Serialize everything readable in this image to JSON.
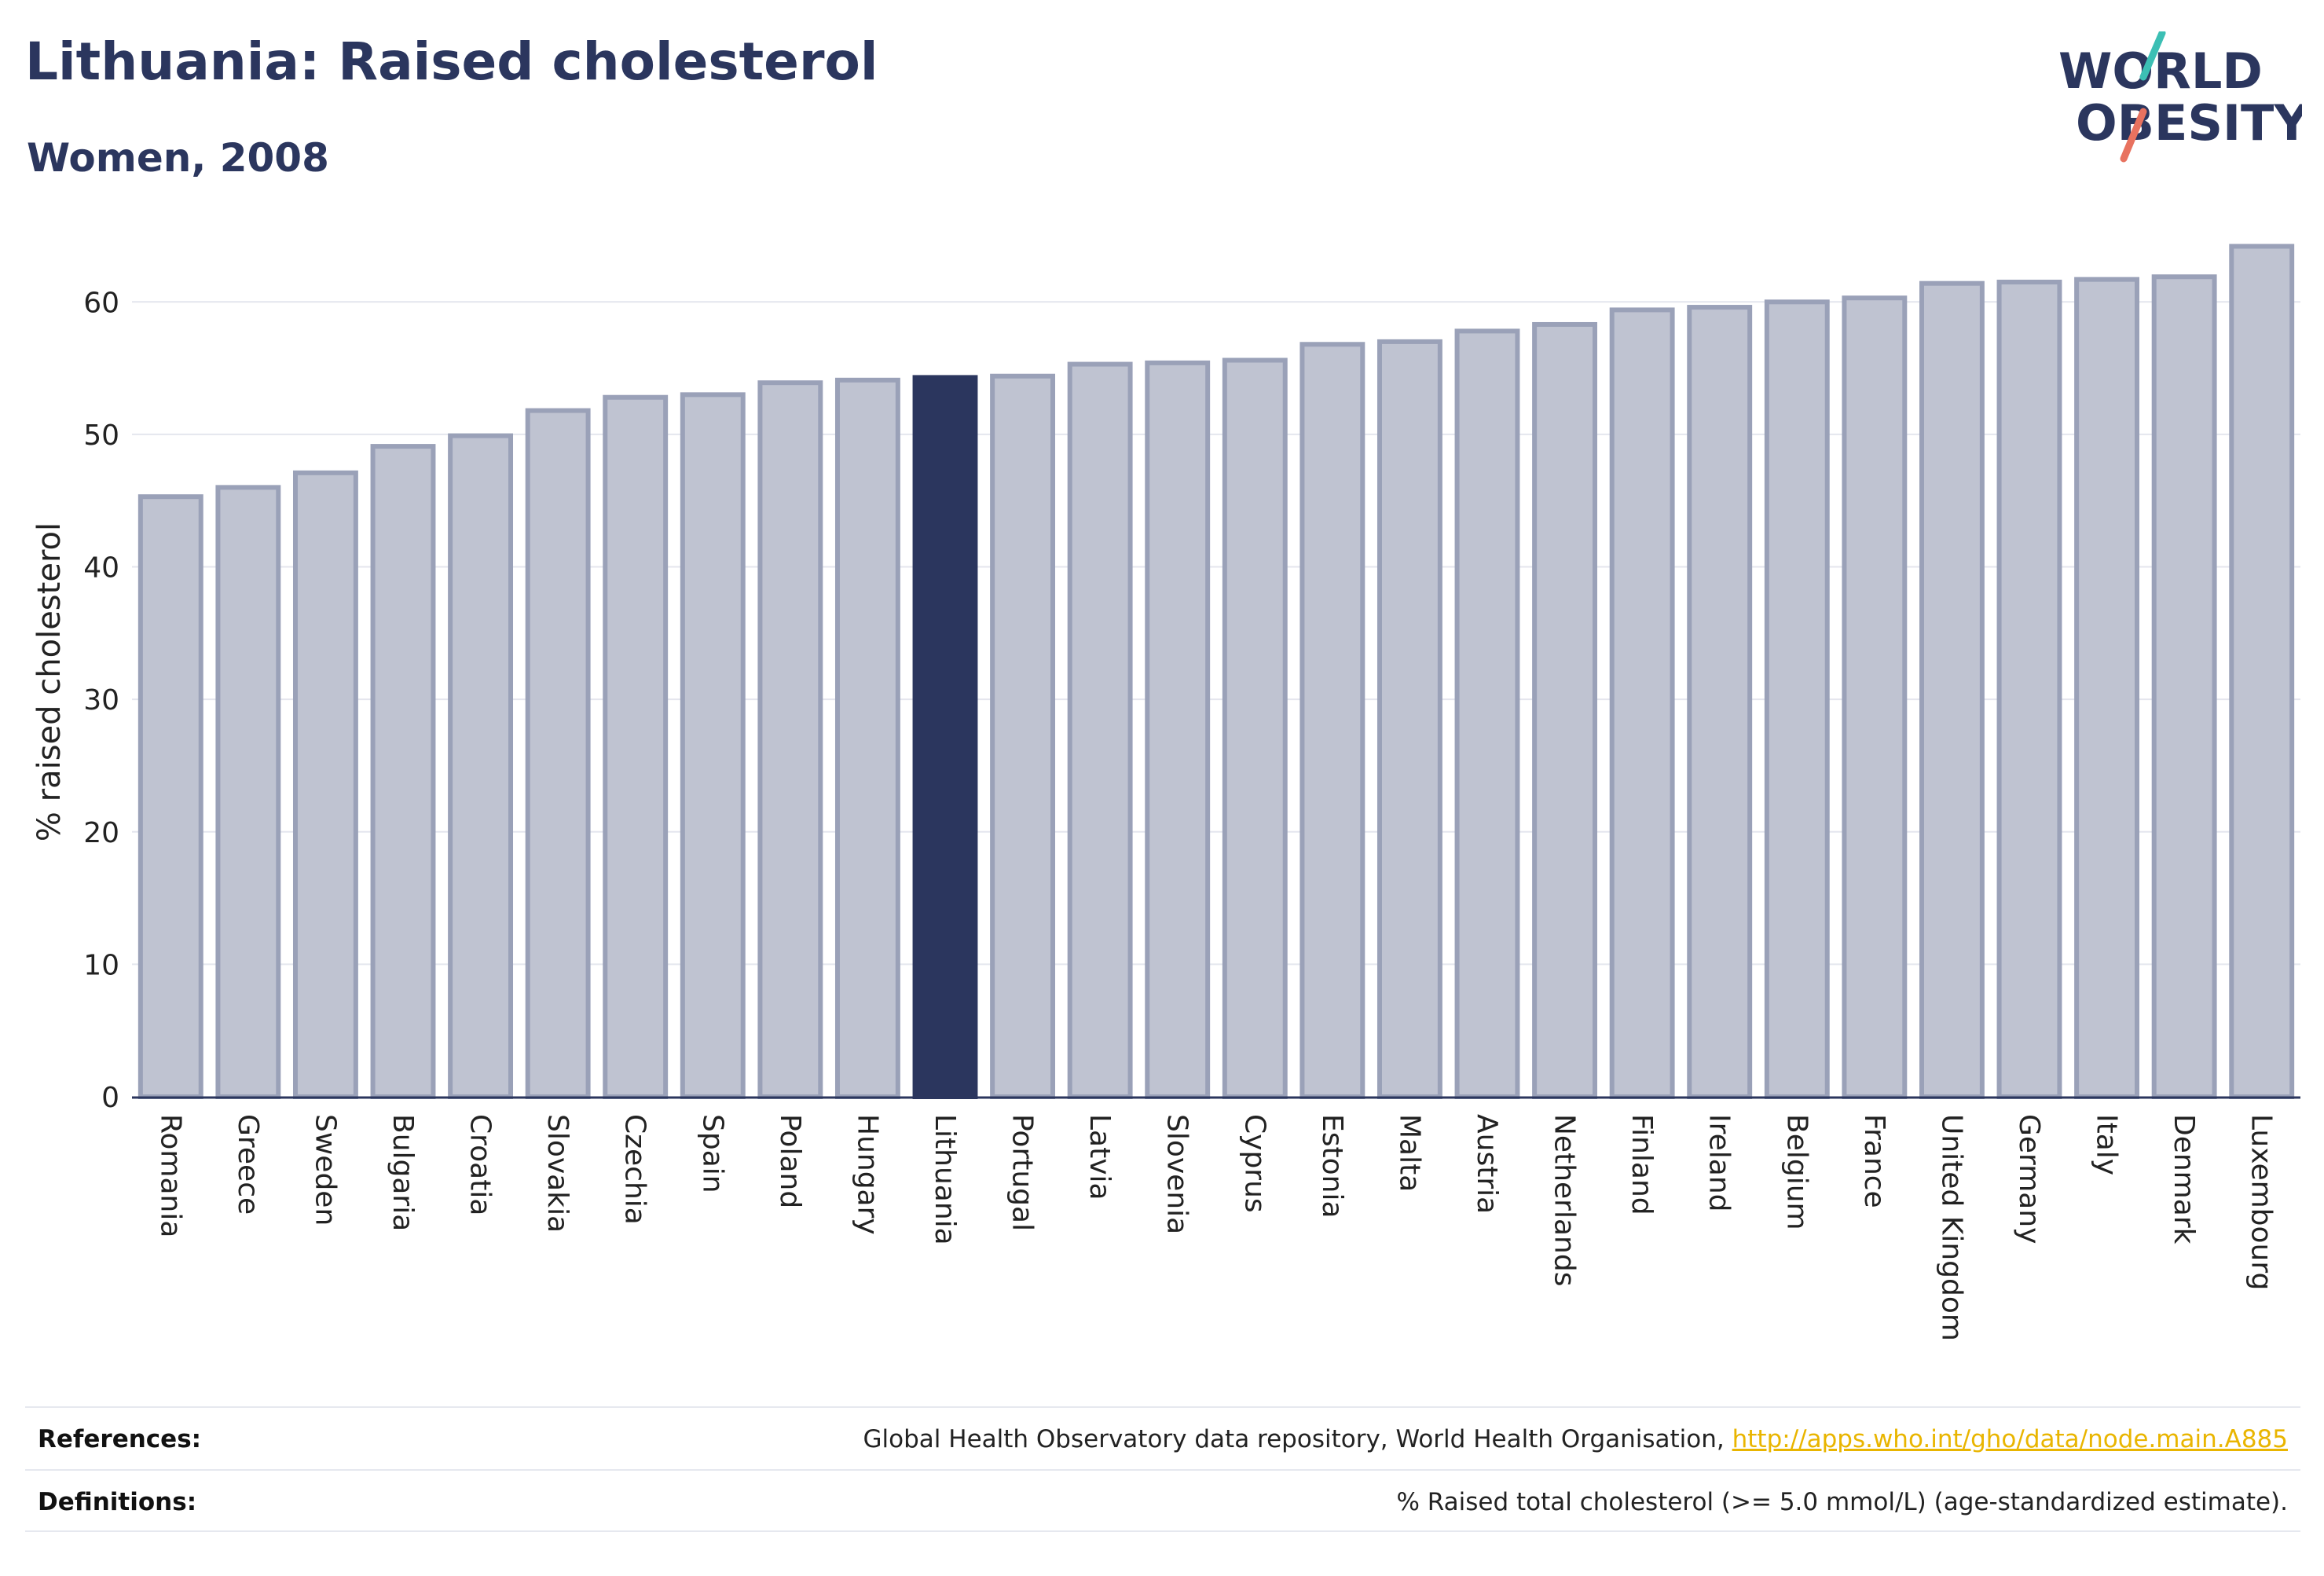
{
  "header": {
    "title": "Lithuania: Raised cholesterol",
    "subtitle": "Women, 2008"
  },
  "logo": {
    "line1": "WORLD",
    "line2": "OBESITY",
    "slash_colors": [
      "#3cbfb4",
      "#e8725f"
    ]
  },
  "colors": {
    "highlight_bar": "#2b365e",
    "normal_bar": "#bfc3d1",
    "bar_border": "#9aa1b8",
    "grid": "#e4e6ee",
    "axis": "#2b365e"
  },
  "chart_data": {
    "type": "bar",
    "title": "Lithuania: Raised cholesterol",
    "subtitle": "Women, 2008",
    "xlabel": "",
    "ylabel": "% raised cholesterol",
    "ylim": [
      0,
      65
    ],
    "yticks": [
      0,
      10,
      20,
      30,
      40,
      50,
      60
    ],
    "grid": true,
    "highlight": "Lithuania",
    "categories": [
      "Romania",
      "Greece",
      "Sweden",
      "Bulgaria",
      "Croatia",
      "Slovakia",
      "Czechia",
      "Spain",
      "Poland",
      "Hungary",
      "Lithuania",
      "Portugal",
      "Latvia",
      "Slovenia",
      "Cyprus",
      "Estonia",
      "Malta",
      "Austria",
      "Netherlands",
      "Finland",
      "Ireland",
      "Belgium",
      "France",
      "United Kingdom",
      "Germany",
      "Italy",
      "Denmark",
      "Luxembourg"
    ],
    "values": [
      45.3,
      46.0,
      47.1,
      49.1,
      49.9,
      51.8,
      52.8,
      53.0,
      53.9,
      54.1,
      54.3,
      54.4,
      55.3,
      55.4,
      55.6,
      56.8,
      57.0,
      57.8,
      58.3,
      59.4,
      59.6,
      60.0,
      60.3,
      61.4,
      61.5,
      61.7,
      61.9,
      64.2
    ]
  },
  "footer": {
    "references_label": "References:",
    "references_text": "Global Health Observatory data repository, World Health Organisation,",
    "references_link": "http://apps.who.int/gho/data/node.main.A885",
    "definitions_label": "Definitions:",
    "definitions_text": "% Raised total cholesterol (>= 5.0 mmol/L) (age-standardized estimate)."
  }
}
